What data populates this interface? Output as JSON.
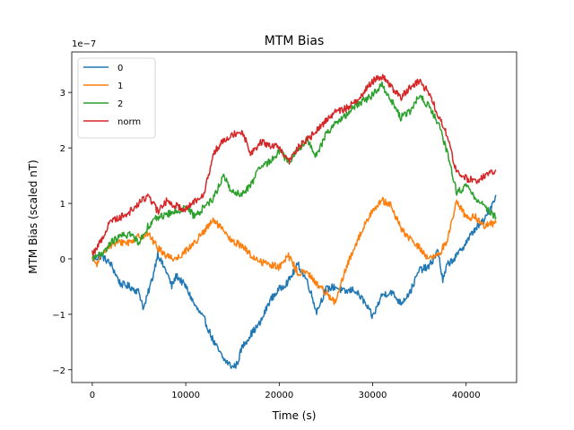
{
  "chart_data": {
    "type": "line",
    "title": "MTM Bias",
    "xlabel": "Time (s)",
    "ylabel": "MTM Bias (scaled nT)",
    "y_offset_label": "1e−7",
    "xlim": [
      -2200,
      45400
    ],
    "ylim": [
      -2.23,
      3.73
    ],
    "x_ticks": [
      0,
      10000,
      20000,
      30000,
      40000
    ],
    "x_tick_labels": [
      "0",
      "10000",
      "20000",
      "30000",
      "40000"
    ],
    "y_ticks": [
      -2,
      -1,
      0,
      1,
      2,
      3
    ],
    "y_tick_labels": [
      "−2",
      "−1",
      "0",
      "1",
      "2",
      "3"
    ],
    "grid": false,
    "legend_position": "top-left",
    "series": [
      {
        "name": "0",
        "color": "#1f77b4",
        "x": [
          0,
          1000,
          2000,
          3000,
          4000,
          5000,
          5500,
          6000,
          6500,
          7000,
          7500,
          8000,
          8500,
          9000,
          10000,
          11000,
          12000,
          13000,
          14000,
          15000,
          15500,
          16000,
          17000,
          18000,
          19000,
          20000,
          21000,
          22000,
          23000,
          24000,
          25000,
          26000,
          27000,
          28000,
          29000,
          30000,
          31000,
          32000,
          33000,
          34000,
          35000,
          36000,
          37000,
          37500,
          38000,
          39000,
          40000,
          41000,
          42000,
          43200
        ],
        "y": [
          0.0,
          0.05,
          -0.1,
          -0.45,
          -0.5,
          -0.6,
          -0.9,
          -0.6,
          -0.3,
          0.1,
          -0.1,
          -0.25,
          -0.5,
          -0.3,
          -0.5,
          -0.85,
          -1.1,
          -1.5,
          -1.8,
          -1.95,
          -1.9,
          -1.6,
          -1.35,
          -1.15,
          -0.75,
          -0.55,
          -0.4,
          -0.1,
          -0.4,
          -0.95,
          -0.55,
          -0.5,
          -0.6,
          -0.55,
          -0.75,
          -1.05,
          -0.65,
          -0.6,
          -0.8,
          -0.6,
          -0.2,
          -0.15,
          0.15,
          -0.4,
          -0.1,
          0.05,
          0.3,
          0.55,
          0.7,
          1.15
        ]
      },
      {
        "name": "1",
        "color": "#ff7f0e",
        "x": [
          0,
          500,
          1000,
          1500,
          2000,
          3000,
          4000,
          5000,
          6000,
          7000,
          8000,
          9000,
          10000,
          11000,
          12000,
          13000,
          14000,
          15000,
          16000,
          17000,
          18000,
          19000,
          20000,
          21000,
          22000,
          23000,
          24000,
          25000,
          26000,
          27000,
          28000,
          29000,
          30000,
          31000,
          32000,
          33000,
          34000,
          35000,
          36000,
          37000,
          38000,
          39000,
          40000,
          41000,
          42000,
          43200
        ],
        "y": [
          0.0,
          -0.1,
          0.05,
          0.2,
          0.25,
          0.3,
          0.3,
          0.4,
          0.45,
          0.2,
          0.05,
          0.0,
          0.15,
          0.3,
          0.5,
          0.7,
          0.5,
          0.3,
          0.25,
          0.05,
          -0.05,
          -0.1,
          -0.15,
          0.05,
          -0.25,
          -0.25,
          -0.45,
          -0.6,
          -0.8,
          -0.25,
          0.2,
          0.55,
          0.9,
          1.05,
          0.95,
          0.55,
          0.35,
          0.2,
          0.0,
          0.05,
          0.35,
          1.05,
          0.75,
          0.75,
          0.6,
          0.65
        ]
      },
      {
        "name": "2",
        "color": "#2ca02c",
        "x": [
          0,
          500,
          1000,
          2000,
          3000,
          4000,
          5000,
          6000,
          7000,
          8000,
          9000,
          10000,
          11000,
          12000,
          13000,
          14000,
          15000,
          16000,
          17000,
          18000,
          19000,
          20000,
          21000,
          22000,
          23000,
          24000,
          25000,
          26000,
          27000,
          28000,
          29000,
          30000,
          31000,
          32000,
          33000,
          34000,
          35000,
          36000,
          37000,
          38000,
          39000,
          40000,
          41000,
          42000,
          43200
        ],
        "y": [
          0.0,
          0.1,
          0.05,
          0.3,
          0.4,
          0.45,
          0.3,
          0.6,
          0.75,
          0.8,
          0.85,
          0.95,
          0.75,
          0.95,
          1.1,
          1.5,
          1.2,
          1.15,
          1.35,
          1.65,
          1.75,
          1.95,
          1.75,
          1.95,
          2.15,
          1.85,
          2.25,
          2.45,
          2.55,
          2.75,
          2.85,
          2.95,
          3.15,
          2.85,
          2.55,
          2.65,
          2.95,
          2.75,
          2.45,
          1.9,
          1.2,
          1.3,
          1.1,
          0.95,
          0.75
        ]
      },
      {
        "name": "norm",
        "color": "#d62728",
        "x": [
          0,
          500,
          1000,
          2000,
          3000,
          4000,
          5000,
          6000,
          7000,
          8000,
          9000,
          10000,
          11000,
          12000,
          13000,
          14000,
          15000,
          16000,
          17000,
          18000,
          19000,
          20000,
          21000,
          22000,
          23000,
          24000,
          25000,
          26000,
          27000,
          28000,
          29000,
          30000,
          31000,
          32000,
          33000,
          34000,
          35000,
          36000,
          37000,
          38000,
          39000,
          40000,
          41000,
          42000,
          43200
        ],
        "y": [
          0.1,
          0.2,
          0.35,
          0.7,
          0.75,
          0.85,
          1.0,
          1.15,
          0.85,
          1.05,
          0.95,
          0.9,
          1.05,
          1.2,
          1.9,
          2.15,
          2.25,
          2.3,
          1.9,
          2.1,
          2.05,
          2.0,
          1.75,
          2.0,
          2.15,
          2.3,
          2.5,
          2.65,
          2.7,
          2.8,
          3.0,
          3.2,
          3.3,
          3.1,
          2.9,
          3.1,
          3.2,
          3.0,
          2.6,
          2.2,
          1.55,
          1.45,
          1.4,
          1.5,
          1.6
        ]
      }
    ]
  }
}
